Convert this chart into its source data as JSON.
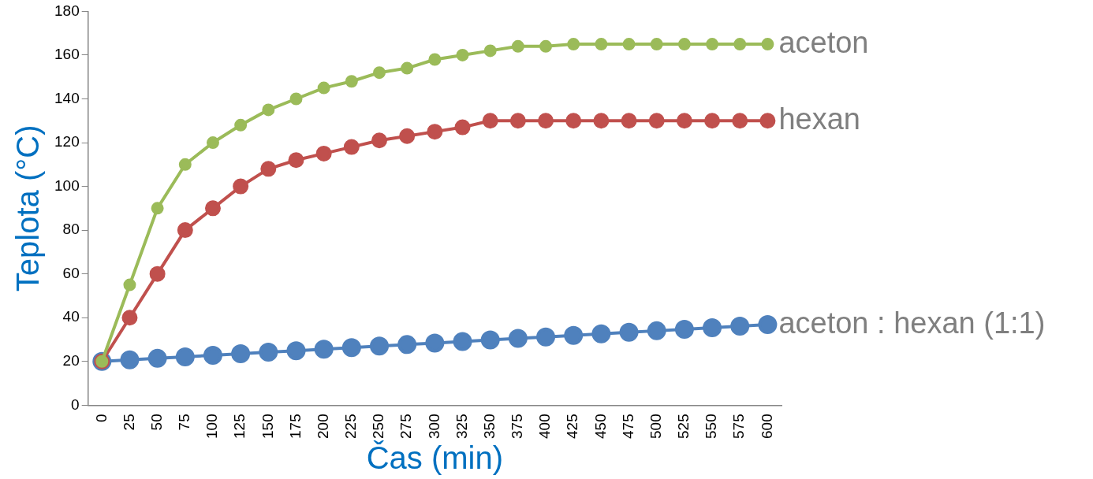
{
  "chart_data": {
    "type": "line",
    "xlabel": "Čas (min)",
    "ylabel": "Teplota (°C)",
    "categories": [
      "0",
      "25",
      "50",
      "75",
      "100",
      "125",
      "150",
      "175",
      "200",
      "225",
      "250",
      "275",
      "300",
      "325",
      "350",
      "375",
      "400",
      "425",
      "450",
      "475",
      "500",
      "525",
      "550",
      "575",
      "600"
    ],
    "ylim": [
      0,
      180
    ],
    "yticks": [
      0,
      20,
      40,
      60,
      80,
      100,
      120,
      140,
      160,
      180
    ],
    "grid": false,
    "legend": false,
    "marker": "circle",
    "line_style": "solid",
    "series": [
      {
        "name": "aceton",
        "color": "#9bbb59",
        "values": [
          20,
          55,
          90,
          110,
          120,
          128,
          135,
          140,
          145,
          148,
          152,
          154,
          158,
          160,
          162,
          164,
          164,
          165,
          165,
          165,
          165,
          165,
          165,
          165,
          165
        ]
      },
      {
        "name": "hexan",
        "color": "#c0504d",
        "values": [
          20,
          40,
          60,
          80,
          90,
          100,
          108,
          112,
          115,
          118,
          121,
          123,
          125,
          127,
          130,
          130,
          130,
          130,
          130,
          130,
          130,
          130,
          130,
          130,
          130
        ]
      },
      {
        "name": "aceton : hexan (1:1)",
        "color": "#4f81bd",
        "values": [
          20,
          20.7,
          21.4,
          22.1,
          22.8,
          23.5,
          24.2,
          24.9,
          25.6,
          26.3,
          27,
          27.7,
          28.4,
          29.1,
          29.8,
          30.5,
          31.2,
          31.9,
          32.6,
          33.3,
          34,
          34.7,
          35.4,
          36.1,
          36.8
        ]
      }
    ]
  }
}
